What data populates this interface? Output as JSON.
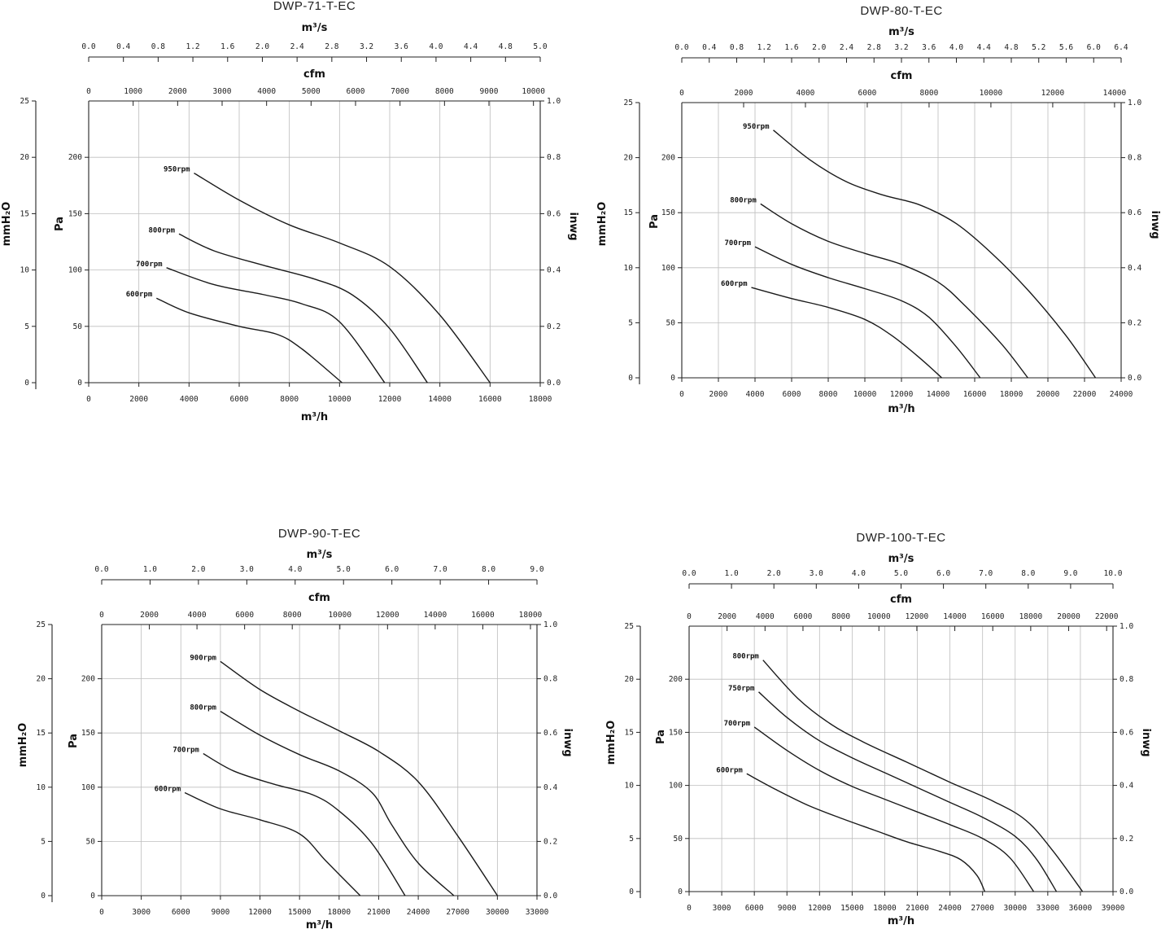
{
  "chart_data": [
    {
      "type": "line",
      "title": "DWP-71-T-EC",
      "xlabel": "m³/h",
      "xlim": [
        0,
        18000
      ],
      "xticks": [
        0,
        2000,
        4000,
        6000,
        8000,
        10000,
        12000,
        14000,
        16000,
        18000
      ],
      "ylabel_left": "Pa",
      "ylim": [
        0,
        250
      ],
      "yticks": [
        0,
        50,
        100,
        150,
        200
      ],
      "ylabel_left2": "mmH₂O",
      "y2lim": [
        0,
        25
      ],
      "y2ticks": [
        0,
        5,
        10,
        15,
        20,
        25
      ],
      "ylabel_right": "inwg",
      "yrlim": [
        0,
        1.0
      ],
      "yrticks": [
        "0.0",
        "0.2",
        "0.4",
        "0.6",
        "0.8",
        "1.0"
      ],
      "xtop1_label": "m³/s",
      "xtop1_ticks": [
        "0.0",
        "0.4",
        "0.8",
        "1.2",
        "1.6",
        "2.0",
        "2.4",
        "2.8",
        "3.2",
        "3.6",
        "4.0",
        "4.4",
        "4.8",
        "5.0"
      ],
      "xtop2_label": "cfm",
      "xtop2_ticks": [
        0,
        1000,
        2000,
        3000,
        4000,
        5000,
        6000,
        7000,
        8000,
        9000,
        10000
      ],
      "grid": true,
      "series": [
        {
          "name": "950rpm",
          "points": [
            [
              4200,
              186
            ],
            [
              6000,
              162
            ],
            [
              8000,
              140
            ],
            [
              10000,
              124
            ],
            [
              12000,
              103
            ],
            [
              14000,
              60
            ],
            [
              16000,
              0
            ]
          ]
        },
        {
          "name": "800rpm",
          "points": [
            [
              3600,
              132
            ],
            [
              5000,
              117
            ],
            [
              7000,
              104
            ],
            [
              9000,
              92
            ],
            [
              10500,
              78
            ],
            [
              12000,
              48
            ],
            [
              13500,
              0
            ]
          ]
        },
        {
          "name": "700rpm",
          "points": [
            [
              3100,
              102
            ],
            [
              5000,
              87
            ],
            [
              7000,
              78
            ],
            [
              8500,
              70
            ],
            [
              10000,
              54
            ],
            [
              11800,
              0
            ]
          ]
        },
        {
          "name": "600rpm",
          "points": [
            [
              2700,
              75
            ],
            [
              4000,
              62
            ],
            [
              6000,
              50
            ],
            [
              7500,
              43
            ],
            [
              8500,
              30
            ],
            [
              10100,
              0
            ]
          ]
        }
      ]
    },
    {
      "type": "line",
      "title": "DWP-80-T-EC",
      "xlabel": "m³/h",
      "xlim": [
        0,
        24000
      ],
      "xticks": [
        0,
        2000,
        4000,
        6000,
        8000,
        10000,
        12000,
        14000,
        16000,
        18000,
        20000,
        22000,
        24000
      ],
      "ylabel_left": "Pa",
      "ylim": [
        0,
        250
      ],
      "yticks": [
        0,
        50,
        100,
        150,
        200
      ],
      "ylabel_left2": "mmH₂O",
      "y2lim": [
        0,
        25
      ],
      "y2ticks": [
        0,
        5,
        10,
        15,
        20,
        25
      ],
      "ylabel_right": "inwg",
      "yrlim": [
        0,
        1.0
      ],
      "yrticks": [
        "0.0",
        "0.2",
        "0.4",
        "0.6",
        "0.8",
        "1.0"
      ],
      "xtop1_label": "m³/s",
      "xtop1_ticks": [
        "0.0",
        "0.4",
        "0.8",
        "1.2",
        "1.6",
        "2.0",
        "2.4",
        "2.8",
        "3.2",
        "3.6",
        "4.0",
        "4.4",
        "4.8",
        "5.2",
        "5.6",
        "6.0",
        "6.4"
      ],
      "xtop2_label": "cfm",
      "xtop2_ticks": [
        0,
        2000,
        4000,
        6000,
        8000,
        10000,
        12000,
        14000
      ],
      "grid": true,
      "series": [
        {
          "name": "950rpm",
          "points": [
            [
              5000,
              225
            ],
            [
              7000,
              198
            ],
            [
              9000,
              178
            ],
            [
              11000,
              166
            ],
            [
              13000,
              157
            ],
            [
              15000,
              140
            ],
            [
              17000,
              112
            ],
            [
              19000,
              78
            ],
            [
              21000,
              38
            ],
            [
              22600,
              0
            ]
          ]
        },
        {
          "name": "800rpm",
          "points": [
            [
              4300,
              158
            ],
            [
              6000,
              140
            ],
            [
              8000,
              124
            ],
            [
              10000,
              113
            ],
            [
              12000,
              103
            ],
            [
              14000,
              87
            ],
            [
              15500,
              65
            ],
            [
              17500,
              30
            ],
            [
              18900,
              0
            ]
          ]
        },
        {
          "name": "700rpm",
          "points": [
            [
              4000,
              119
            ],
            [
              6000,
              103
            ],
            [
              8000,
              91
            ],
            [
              10000,
              81
            ],
            [
              12000,
              70
            ],
            [
              13500,
              55
            ],
            [
              15000,
              28
            ],
            [
              16300,
              0
            ]
          ]
        },
        {
          "name": "600rpm",
          "points": [
            [
              3800,
              82
            ],
            [
              6000,
              72
            ],
            [
              8000,
              64
            ],
            [
              10000,
              53
            ],
            [
              11500,
              38
            ],
            [
              13000,
              18
            ],
            [
              14200,
              0
            ]
          ]
        }
      ]
    },
    {
      "type": "line",
      "title": "DWP-90-T-EC",
      "xlabel": "m³/h",
      "xlim": [
        0,
        33000
      ],
      "xticks": [
        0,
        3000,
        6000,
        9000,
        12000,
        15000,
        18000,
        21000,
        24000,
        27000,
        30000,
        33000
      ],
      "ylabel_left": "Pa",
      "ylim": [
        0,
        250
      ],
      "yticks": [
        0,
        50,
        100,
        150,
        200
      ],
      "ylabel_left2": "mmH₂O",
      "y2lim": [
        0,
        25
      ],
      "y2ticks": [
        0,
        5,
        10,
        15,
        20,
        25
      ],
      "ylabel_right": "inwg",
      "yrlim": [
        0,
        1.0
      ],
      "yrticks": [
        "0.0",
        "0.2",
        "0.4",
        "0.6",
        "0.8",
        "1.0"
      ],
      "xtop1_label": "m³/s",
      "xtop1_ticks": [
        "0.0",
        "1.0",
        "2.0",
        "3.0",
        "4.0",
        "5.0",
        "6.0",
        "7.0",
        "8.0",
        "9.0"
      ],
      "xtop2_label": "cfm",
      "xtop2_ticks": [
        0,
        2000,
        4000,
        6000,
        8000,
        10000,
        12000,
        14000,
        16000,
        18000
      ],
      "grid": true,
      "series": [
        {
          "name": "900rpm",
          "points": [
            [
              9000,
              216
            ],
            [
              12000,
              190
            ],
            [
              15000,
              170
            ],
            [
              18000,
              152
            ],
            [
              21000,
              133
            ],
            [
              24000,
              105
            ],
            [
              27000,
              55
            ],
            [
              30000,
              0
            ]
          ]
        },
        {
          "name": "800rpm",
          "points": [
            [
              9000,
              170
            ],
            [
              12000,
              148
            ],
            [
              15000,
              130
            ],
            [
              18000,
              115
            ],
            [
              20500,
              95
            ],
            [
              22000,
              65
            ],
            [
              24000,
              30
            ],
            [
              26700,
              0
            ]
          ]
        },
        {
          "name": "700rpm",
          "points": [
            [
              7700,
              131
            ],
            [
              10000,
              115
            ],
            [
              13000,
              103
            ],
            [
              16000,
              93
            ],
            [
              18000,
              78
            ],
            [
              20500,
              48
            ],
            [
              23000,
              0
            ]
          ]
        },
        {
          "name": "600rpm",
          "points": [
            [
              6300,
              95
            ],
            [
              9000,
              80
            ],
            [
              12000,
              70
            ],
            [
              15000,
              57
            ],
            [
              17000,
              32
            ],
            [
              19600,
              0
            ]
          ]
        }
      ]
    },
    {
      "type": "line",
      "title": "DWP-100-T-EC",
      "xlabel": "m³/h",
      "xlim": [
        0,
        39000
      ],
      "xticks": [
        0,
        3000,
        6000,
        9000,
        12000,
        15000,
        18000,
        21000,
        24000,
        27000,
        30000,
        33000,
        36000,
        39000
      ],
      "ylabel_left": "Pa",
      "ylim": [
        0,
        250
      ],
      "yticks": [
        0,
        50,
        100,
        150,
        200
      ],
      "ylabel_left2": "mmH₂O",
      "y2lim": [
        0,
        25
      ],
      "y2ticks": [
        0,
        5,
        10,
        15,
        20,
        25
      ],
      "ylabel_right": "inwg",
      "yrlim": [
        0,
        1.0
      ],
      "yrticks": [
        "0.0",
        "0.2",
        "0.4",
        "0.6",
        "0.8",
        "1.0"
      ],
      "xtop1_label": "m³/s",
      "xtop1_ticks": [
        "0.0",
        "1.0",
        "2.0",
        "3.0",
        "4.0",
        "5.0",
        "6.0",
        "7.0",
        "8.0",
        "9.0",
        "10.0"
      ],
      "xtop2_label": "cfm",
      "xtop2_ticks": [
        "0",
        "2000",
        "4000",
        "6000",
        "8000",
        "10000",
        "12000",
        "14000",
        "16000",
        "18000",
        "20000",
        "22000"
      ],
      "grid": true,
      "series": [
        {
          "name": "800rpm",
          "points": [
            [
              6800,
              218
            ],
            [
              10000,
              182
            ],
            [
              13000,
              158
            ],
            [
              16000,
              141
            ],
            [
              20000,
              122
            ],
            [
              24000,
              103
            ],
            [
              28000,
              85
            ],
            [
              31000,
              67
            ],
            [
              33500,
              38
            ],
            [
              36200,
              0
            ]
          ]
        },
        {
          "name": "750rpm",
          "points": [
            [
              6400,
              188
            ],
            [
              9000,
              164
            ],
            [
              12000,
              142
            ],
            [
              15000,
              126
            ],
            [
              18000,
              112
            ],
            [
              21000,
              98
            ],
            [
              24000,
              84
            ],
            [
              27000,
              70
            ],
            [
              30000,
              52
            ],
            [
              32000,
              30
            ],
            [
              33800,
              0
            ]
          ]
        },
        {
          "name": "700rpm",
          "points": [
            [
              6000,
              155
            ],
            [
              9000,
              133
            ],
            [
              12000,
              114
            ],
            [
              15000,
              99
            ],
            [
              18000,
              87
            ],
            [
              21000,
              75
            ],
            [
              24000,
              63
            ],
            [
              27000,
              50
            ],
            [
              29500,
              32
            ],
            [
              31700,
              0
            ]
          ]
        },
        {
          "name": "600rpm",
          "points": [
            [
              5300,
              111
            ],
            [
              8000,
              96
            ],
            [
              11000,
              81
            ],
            [
              14000,
              69
            ],
            [
              17000,
              58
            ],
            [
              20000,
              47
            ],
            [
              23000,
              38
            ],
            [
              25000,
              30
            ],
            [
              26500,
              15
            ],
            [
              27200,
              0
            ]
          ]
        }
      ]
    }
  ]
}
